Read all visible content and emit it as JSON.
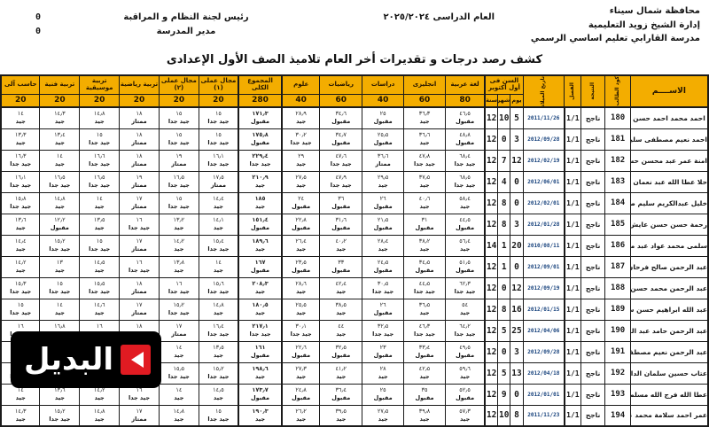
{
  "page": {
    "school_lines": [
      "محافظة شمال سيناء",
      "إدارة الشيخ زويد التعليمية",
      "مدرسة القارابي تعليم اساسي الرسمي"
    ],
    "year_label": "العام الدراسى ٢٠٢٥/٢٠٢٤",
    "officials": [
      {
        "label": "رئيس لجنة النظام و المراقبة",
        "value": "0"
      },
      {
        "label": "مدير المدرسة",
        "value": "0"
      }
    ],
    "title": "كشف رصد درجات و تقديرات أخر العام تلاميذ الصف الأول الإعدادى",
    "watermark": {
      "text": "البديل",
      "icon": "play-icon",
      "bg": "#000000",
      "accent": "#e11b22"
    }
  },
  "colors": {
    "header_bg": "#f3ad00",
    "border": "#1a1a1a",
    "dob_text": "#16417c"
  },
  "table": {
    "headers": {
      "name": "الاســــم",
      "code": "كود الطالب",
      "result": "النتيجة",
      "class": "الفصل",
      "dob": "تاريخ الميلاد",
      "age_group": "السن فى أول أكتوبر",
      "age_sub": [
        "يوم",
        "شهر",
        "سنة"
      ]
    },
    "subjects": [
      {
        "name": "لغة عربية",
        "max": "80"
      },
      {
        "name": "انجليزى",
        "max": "60"
      },
      {
        "name": "دراسات",
        "max": "40"
      },
      {
        "name": "رياضيات",
        "max": "60"
      },
      {
        "name": "علوم",
        "max": "40"
      },
      {
        "name": "المجموع الكلى",
        "max": "280"
      },
      {
        "name": "مجال عملى (١)",
        "max": "20"
      },
      {
        "name": "مجال عملى (٢)",
        "max": "20"
      },
      {
        "name": "تربية رياضية",
        "max": "20"
      },
      {
        "name": "تربية موسيقية",
        "max": "20"
      },
      {
        "name": "تربية فنية",
        "max": "20"
      },
      {
        "name": "حاسب آلى",
        "max": "20"
      }
    ],
    "rows": [
      {
        "name": "احمد محمد احمد حسن",
        "code": "180",
        "result": "ناجح",
        "class": "1/1",
        "dob": "2011/11/26",
        "age_d": "5",
        "age_m": "10",
        "age_y": "12",
        "scores": [
          [
            "٤٦٫٥",
            "مقبول"
          ],
          [
            "٣٦٫٣",
            "جيد"
          ],
          [
            "٢٥",
            "مقبول"
          ],
          [
            "٣٤٫٦",
            "مقبول"
          ],
          [
            "٢٨٫٩",
            "جيد"
          ],
          [
            "١٧١٫٣",
            "مقبول"
          ],
          [
            "١٥",
            "جيد جدا"
          ],
          [
            "١٥",
            "جيد جدا"
          ],
          [
            "١٨",
            "ممتاز"
          ],
          [
            "١٤٫٨",
            "جيد"
          ],
          [
            "١٤٫٣",
            "جيد"
          ],
          [
            "١٤",
            "جيد"
          ]
        ]
      },
      {
        "name": "احمد نعيم مصطفى سليم",
        "code": "181",
        "result": "ناجح",
        "class": "1/1",
        "dob": "2012/09/28",
        "age_d": "3",
        "age_m": "0",
        "age_y": "12",
        "scores": [
          [
            "٤٨٫٨",
            "مقبول"
          ],
          [
            "٣٦٫٦",
            "جيد"
          ],
          [
            "٢٥٫٥",
            "مقبول"
          ],
          [
            "٣٤٫٧",
            "مقبول"
          ],
          [
            "٣٠٫٢",
            "جيد جدا"
          ],
          [
            "١٧٥٫٨",
            "مقبول"
          ],
          [
            "١٥",
            "جيد جدا"
          ],
          [
            "١٥",
            "جيد جدا"
          ],
          [
            "١٨",
            "ممتاز"
          ],
          [
            "١٥",
            "جيد جدا"
          ],
          [
            "١٣٫٤",
            "جيد"
          ],
          [
            "١٣٫٣",
            "جيد"
          ]
        ]
      },
      {
        "name": "امنة عمر عبد محسن حسين",
        "code": "182",
        "result": "ناجح",
        "class": "1/1",
        "dob": "2012/02/19",
        "age_d": "12",
        "age_m": "7",
        "age_y": "12",
        "scores": [
          [
            "٦٨٫٤",
            "جيد جدا"
          ],
          [
            "٤٧٫٨",
            "جيد جدا"
          ],
          [
            "٣٦٫٦",
            "ممتاز"
          ],
          [
            "٤٧٫٦",
            "جيد جدا"
          ],
          [
            "٢٩",
            "جيد"
          ],
          [
            "٢٢٩٫٤",
            "جيد جدا"
          ],
          [
            "١٦٫١",
            "جيد جدا"
          ],
          [
            "١٩",
            "ممتاز"
          ],
          [
            "١٨",
            "ممتاز"
          ],
          [
            "١٦٫٦",
            "جيد جدا"
          ],
          [
            "١٤",
            "جيد"
          ],
          [
            "١٦٫٣",
            "جيد جدا"
          ]
        ]
      },
      {
        "name": "حلا عطا الله عبد نعمان ابراهيم",
        "code": "183",
        "result": "ناجح",
        "class": "1/1",
        "dob": "2012/06/01",
        "age_d": "0",
        "age_m": "4",
        "age_y": "12",
        "scores": [
          [
            "٦٨٫٥",
            "جيد جدا"
          ],
          [
            "٣٧٫٥",
            "جيد"
          ],
          [
            "٢٩٫٥",
            "جيد"
          ],
          [
            "٤٧٫٩",
            "جيد جدا"
          ],
          [
            "٢٧٫٥",
            "جيد"
          ],
          [
            "٢١٠٫٩",
            "جيد"
          ],
          [
            "١٧٫٥",
            "ممتاز"
          ],
          [
            "١٦٫٥",
            "جيد جدا"
          ],
          [
            "١٩",
            "ممتاز"
          ],
          [
            "١٦٫٥",
            "جيد جدا"
          ],
          [
            "١٦٫٥",
            "جيد جدا"
          ],
          [
            "١٦٫١",
            "جيد جدا"
          ]
        ]
      },
      {
        "name": "خليل عبدالكريم سليم صبح",
        "code": "184",
        "result": "ناجح",
        "class": "1/1",
        "dob": "2012/02/01",
        "age_d": "0",
        "age_m": "8",
        "age_y": "12",
        "scores": [
          [
            "٥٨٫٤",
            "جيد"
          ],
          [
            "٤٠٫٦",
            "جيد"
          ],
          [
            "٢٦",
            "مقبول"
          ],
          [
            "٣٦",
            "مقبول"
          ],
          [
            "٢٤",
            "مقبول"
          ],
          [
            "١٨٥",
            "جيد"
          ],
          [
            "١٤٫٤",
            "جيد"
          ],
          [
            "١٥",
            "جيد جدا"
          ],
          [
            "١٧",
            "ممتاز"
          ],
          [
            "١٤",
            "جيد"
          ],
          [
            "١٤٫٨",
            "جيد"
          ],
          [
            "١٥٫٨",
            "جيد جدا"
          ]
        ]
      },
      {
        "name": "رحمة حسن حسن عايش خلف",
        "code": "185",
        "result": "ناجح",
        "class": "1/1",
        "dob": "2012/01/28",
        "age_d": "3",
        "age_m": "8",
        "age_y": "12",
        "scores": [
          [
            "٤٤٫٥",
            "مقبول"
          ],
          [
            "٣١",
            "مقبول"
          ],
          [
            "٢١٫٥",
            "مقبول"
          ],
          [
            "٣١٫٦",
            "مقبول"
          ],
          [
            "٢٢٫٨",
            "مقبول"
          ],
          [
            "١٥١٫٤",
            "مقبول"
          ],
          [
            "١٤٫١",
            "جيد"
          ],
          [
            "١٣٫٢",
            "جيد"
          ],
          [
            "١٦",
            "جيد جدا"
          ],
          [
            "١٣٫٥",
            "جيد"
          ],
          [
            "١٢٫٢",
            "مقبول"
          ],
          [
            "١٣٫٦",
            "جيد"
          ]
        ]
      },
      {
        "name": "سلمى محمد عواد عبد منصر",
        "code": "186",
        "result": "ناجح",
        "class": "1/1",
        "dob": "2010/08/11",
        "age_d": "20",
        "age_m": "1",
        "age_y": "14",
        "scores": [
          [
            "٥٦٫٤",
            "جيد"
          ],
          [
            "٣٨٫٢",
            "جيد"
          ],
          [
            "٢٨٫٤",
            "جيد"
          ],
          [
            "٤٠٫٢",
            "جيد"
          ],
          [
            "٢٦٫٤",
            "جيد"
          ],
          [
            "١٨٩٫٦",
            "جيد"
          ],
          [
            "١٥٫٤",
            "جيد جدا"
          ],
          [
            "١٤٫٢",
            "جيد"
          ],
          [
            "١٧",
            "ممتاز"
          ],
          [
            "١٥",
            "جيد جدا"
          ],
          [
            "١٥٫٢",
            "جيد جدا"
          ],
          [
            "١٤٫٤",
            "جيد"
          ]
        ]
      },
      {
        "name": "عبد الرحمن صالح فرحان جاد على",
        "code": "187",
        "result": "ناجح",
        "class": "1/1",
        "dob": "2012/09/01",
        "age_d": "0",
        "age_m": "1",
        "age_y": "12",
        "scores": [
          [
            "٥١٫٥",
            "مقبول"
          ],
          [
            "٣٤٫٥",
            "مقبول"
          ],
          [
            "٢٤٫٥",
            "مقبول"
          ],
          [
            "٣٣",
            "مقبول"
          ],
          [
            "٢٣٫٥",
            "مقبول"
          ],
          [
            "١٦٧",
            "مقبول"
          ],
          [
            "١٤",
            "جيد"
          ],
          [
            "١٣٫٨",
            "جيد"
          ],
          [
            "١٦",
            "جيد جدا"
          ],
          [
            "١٤٫٥",
            "جيد"
          ],
          [
            "١٣",
            "جيد"
          ],
          [
            "١٤٫٢",
            "جيد"
          ]
        ]
      },
      {
        "name": "عبد الرحمن محمد حسن عبدالكريم",
        "code": "188",
        "result": "ناجح",
        "class": "1/1",
        "dob": "2012/09/19",
        "age_d": "12",
        "age_m": "0",
        "age_y": "12",
        "scores": [
          [
            "٦٢٫٣",
            "جيد جدا"
          ],
          [
            "٤٤٫٥",
            "جيد جدا"
          ],
          [
            "٣٠٫٥",
            "جيد جدا"
          ],
          [
            "٤٢٫٤",
            "جيد"
          ],
          [
            "٢٨٫٦",
            "جيد"
          ],
          [
            "٢٠٨٫٣",
            "جيد"
          ],
          [
            "١٥٫٦",
            "جيد جدا"
          ],
          [
            "١٦",
            "جيد جدا"
          ],
          [
            "١٨",
            "ممتاز"
          ],
          [
            "١٥٫٥",
            "جيد جدا"
          ],
          [
            "١٥",
            "جيد جدا"
          ],
          [
            "١٥٫٣",
            "جيد جدا"
          ]
        ]
      },
      {
        "name": "عبد الله ابراهيم حسن سلمان خلف",
        "code": "189",
        "result": "ناجح",
        "class": "1/1",
        "dob": "2012/01/15",
        "age_d": "16",
        "age_m": "8",
        "age_y": "12",
        "scores": [
          [
            "٥٤",
            "جيد"
          ],
          [
            "٣٦٫٥",
            "جيد"
          ],
          [
            "٢٦",
            "مقبول"
          ],
          [
            "٣٨٫٥",
            "جيد"
          ],
          [
            "٢٥٫٥",
            "جيد"
          ],
          [
            "١٨٠٫٥",
            "جيد"
          ],
          [
            "١٤٫٨",
            "جيد"
          ],
          [
            "١٥٫٢",
            "جيد جدا"
          ],
          [
            "١٧",
            "ممتاز"
          ],
          [
            "١٤٫٦",
            "جيد"
          ],
          [
            "١٤",
            "جيد"
          ],
          [
            "١٥",
            "جيد جدا"
          ]
        ]
      },
      {
        "name": "عبد الرحمن حامد عبد الركابى السيد",
        "code": "190",
        "result": "ناجح",
        "class": "1/1",
        "dob": "2012/04/06",
        "age_d": "25",
        "age_m": "5",
        "age_y": "12",
        "scores": [
          [
            "٦٤٫٢",
            "جيد جدا"
          ],
          [
            "٤٦٫٣",
            "جيد جدا"
          ],
          [
            "٣٢٫٥",
            "جيد جدا"
          ],
          [
            "٤٤",
            "جيد"
          ],
          [
            "٣٠٫١",
            "جيد جدا"
          ],
          [
            "٢١٧٫١",
            "جيد جدا"
          ],
          [
            "١٦٫٤",
            "جيد جدا"
          ],
          [
            "١٧",
            "ممتاز"
          ],
          [
            "١٨",
            "ممتاز"
          ],
          [
            "١٦",
            "جيد جدا"
          ],
          [
            "١٦٫٨",
            "ممتاز"
          ],
          [
            "١٦",
            "جيد جدا"
          ]
        ]
      },
      {
        "name": "عبد الرحمن نعيم مصطفى سليم",
        "code": "191",
        "result": "ناجح",
        "class": "1/1",
        "dob": "2012/09/28",
        "age_d": "3",
        "age_m": "0",
        "age_y": "12",
        "scores": [
          [
            "٤٩٫٥",
            "مقبول"
          ],
          [
            "٣٣٫٤",
            "مقبول"
          ],
          [
            "٢٣",
            "مقبول"
          ],
          [
            "٣٢٫٥",
            "مقبول"
          ],
          [
            "٢٢٫٦",
            "مقبول"
          ],
          [
            "١٦١",
            "مقبول"
          ],
          [
            "١٣٫٥",
            "جيد"
          ],
          [
            "١٤",
            "جيد"
          ],
          [
            "١٦",
            "جيد جدا"
          ],
          [
            "١٣٫٨",
            "جيد"
          ],
          [
            "١٣",
            "جيد"
          ],
          [
            "١٣٫٢",
            "جيد"
          ]
        ]
      },
      {
        "name": "عتاب حسين سلمان الداهمى",
        "code": "192",
        "result": "ناجح",
        "class": "1/1",
        "dob": "2012/04/18",
        "age_d": "13",
        "age_m": "5",
        "age_y": "12",
        "scores": [
          [
            "٥٩٫٦",
            "جيد"
          ],
          [
            "٤٢٫٥",
            "جيد"
          ],
          [
            "٢٨",
            "جيد"
          ],
          [
            "٤١٫٢",
            "جيد"
          ],
          [
            "٢٧٫٣",
            "جيد"
          ],
          [
            "١٩٨٫٦",
            "جيد"
          ],
          [
            "١٥٫٢",
            "جيد جدا"
          ],
          [
            "١٥٫٥",
            "جيد جدا"
          ],
          [
            "١٧",
            "ممتاز"
          ],
          [
            "١٥",
            "جيد جدا"
          ],
          [
            "١٥٫٤",
            "جيد جدا"
          ],
          [
            "١٥",
            "جيد جدا"
          ]
        ]
      },
      {
        "name": "عطا الله فرج الله مسلم سلمان",
        "code": "193",
        "result": "ناجح",
        "class": "1/1",
        "dob": "2012/01/01",
        "age_d": "0",
        "age_m": "9",
        "age_y": "12",
        "scores": [
          [
            "٥٢٫٥",
            "مقبول"
          ],
          [
            "٣٥",
            "مقبول"
          ],
          [
            "٢٥",
            "مقبول"
          ],
          [
            "٣٦٫٤",
            "مقبول"
          ],
          [
            "٢٤٫٨",
            "مقبول"
          ],
          [
            "١٧٣٫٧",
            "مقبول"
          ],
          [
            "١٤٫٥",
            "جيد"
          ],
          [
            "١٤",
            "جيد"
          ],
          [
            "١٦",
            "جيد جدا"
          ],
          [
            "١٤٫٢",
            "جيد"
          ],
          [
            "١٣٫٦",
            "جيد"
          ],
          [
            "١٤",
            "جيد"
          ]
        ]
      },
      {
        "name": "عمر احمد سلامة محمد عوده",
        "code": "194",
        "result": "ناجح",
        "class": "1/1",
        "dob": "2011/11/23",
        "age_d": "8",
        "age_m": "10",
        "age_y": "12",
        "scores": [
          [
            "٥٧٫٣",
            "جيد"
          ],
          [
            "٣٩٫٨",
            "جيد"
          ],
          [
            "٢٧٫٥",
            "جيد"
          ],
          [
            "٣٩٫٥",
            "جيد"
          ],
          [
            "٢٦٫٢",
            "جيد"
          ],
          [
            "١٩٠٫٣",
            "جيد"
          ],
          [
            "١٥",
            "جيد جدا"
          ],
          [
            "١٤٫٨",
            "جيد"
          ],
          [
            "١٧",
            "ممتاز"
          ],
          [
            "١٤٫٨",
            "جيد"
          ],
          [
            "١٥٫٢",
            "جيد جدا"
          ],
          [
            "١٤٫٣",
            "جيد"
          ]
        ]
      }
    ]
  }
}
